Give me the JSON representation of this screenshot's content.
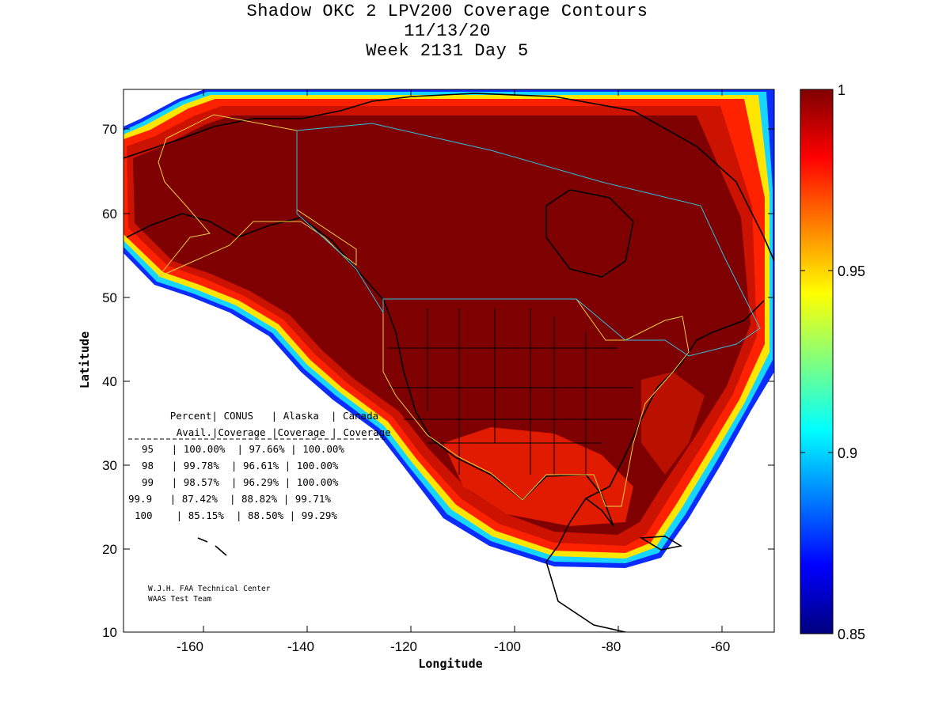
{
  "title": {
    "line1": "Shadow OKC 2 LPV200 Coverage Contours",
    "line2": "11/13/20",
    "line3": "Week 2131 Day 5"
  },
  "axes": {
    "xlabel": "Longitude",
    "ylabel": "Latitude",
    "xticks": [
      "-160",
      "-140",
      "-120",
      "-100",
      "-80",
      "-60"
    ],
    "yticks": [
      "70",
      "60",
      "50",
      "40",
      "30",
      "20",
      "10"
    ]
  },
  "colorbar": {
    "ticks": [
      "1",
      "0.95",
      "0.9",
      "0.85"
    ]
  },
  "stats_table": {
    "header1": [
      "Percent",
      "CONUS",
      "Alaska",
      "Canada"
    ],
    "header2": [
      "Avail.",
      "Coverage",
      "Coverage",
      "Coverage"
    ],
    "rows": [
      [
        "95",
        "100.00%",
        "97.66%",
        "100.00%"
      ],
      [
        "98",
        "99.78%",
        "96.61%",
        "100.00%"
      ],
      [
        "99",
        "98.57%",
        "96.29%",
        "100.00%"
      ],
      [
        "99.9",
        "87.42%",
        "88.82%",
        "99.71%"
      ],
      [
        "100",
        "85.15%",
        "88.50%",
        "99.29%"
      ]
    ]
  },
  "credit": {
    "line1": "W.J.H. FAA Technical Center",
    "line2": "WAAS Test Team"
  },
  "chart_data": {
    "type": "heatmap",
    "title": "Shadow OKC 2 LPV200 Coverage Contours",
    "xlabel": "Longitude",
    "ylabel": "Latitude",
    "xlim": [
      -175,
      -50
    ],
    "ylim": [
      10,
      75
    ],
    "color_range": [
      0.85,
      1.0
    ],
    "colormap": "jet",
    "coverage_by_availability": [
      {
        "availability": 95,
        "conus": 100.0,
        "alaska": 97.66,
        "canada": 100.0
      },
      {
        "availability": 98,
        "conus": 99.78,
        "alaska": 96.61,
        "canada": 100.0
      },
      {
        "availability": 99,
        "conus": 98.57,
        "alaska": 96.29,
        "canada": 100.0
      },
      {
        "availability": 99.9,
        "conus": 87.42,
        "alaska": 88.82,
        "canada": 99.71
      },
      {
        "availability": 100,
        "conus": 85.15,
        "alaska": 88.5,
        "canada": 99.29
      }
    ]
  }
}
